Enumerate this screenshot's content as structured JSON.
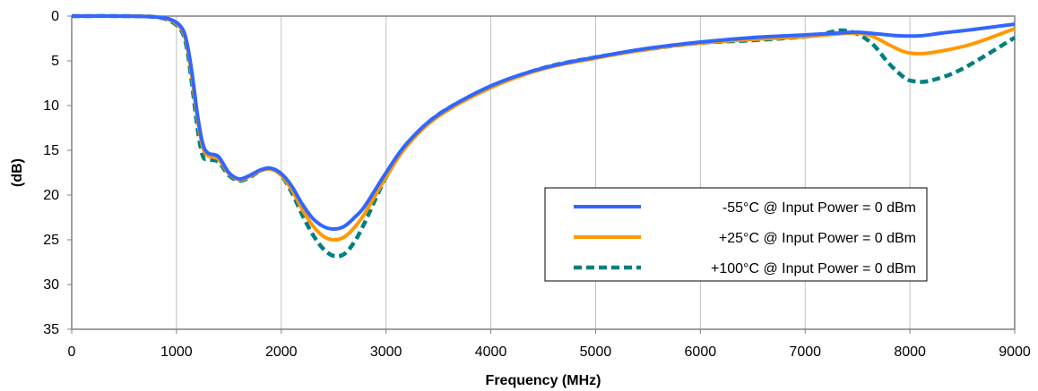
{
  "chart_data": {
    "type": "line",
    "title": "",
    "xlabel": "Frequency (MHz)",
    "ylabel": "(dB)",
    "xlim": [
      0,
      9000
    ],
    "ylim": [
      35,
      0
    ],
    "y_inverted": true,
    "x_ticks": [
      0,
      1000,
      2000,
      3000,
      4000,
      5000,
      6000,
      7000,
      8000,
      9000
    ],
    "y_ticks": [
      0,
      5,
      10,
      15,
      20,
      25,
      30,
      35
    ],
    "grid": "vertical",
    "legend_position": "bottom-right",
    "series": [
      {
        "name": "-55°C @  Input Power = 0 dBm",
        "color": "#3366ff",
        "style": "solid",
        "x": [
          0,
          500,
          800,
          950,
          1050,
          1100,
          1150,
          1200,
          1250,
          1300,
          1400,
          1500,
          1600,
          1700,
          1800,
          1900,
          2000,
          2100,
          2200,
          2300,
          2400,
          2500,
          2600,
          2700,
          2800,
          3000,
          3200,
          3500,
          4000,
          4500,
          5000,
          5500,
          6000,
          6500,
          7000,
          7300,
          7500,
          7700,
          7900,
          8100,
          8300,
          8600,
          9000
        ],
        "y": [
          0,
          0,
          0.1,
          0.4,
          1.3,
          3.0,
          6.5,
          11.0,
          14.2,
          15.3,
          15.7,
          17.5,
          18.2,
          17.8,
          17.2,
          17.0,
          17.6,
          19.0,
          21.0,
          22.6,
          23.5,
          23.8,
          23.5,
          22.5,
          21.2,
          17.5,
          14.2,
          11.0,
          7.8,
          5.8,
          4.6,
          3.6,
          2.9,
          2.4,
          2.1,
          1.9,
          1.8,
          2.0,
          2.2,
          2.2,
          1.9,
          1.5,
          0.9
        ]
      },
      {
        "name": "+25°C @  Input Power = 0 dBm",
        "color": "#ff9900",
        "style": "solid",
        "x": [
          0,
          500,
          800,
          950,
          1050,
          1100,
          1150,
          1200,
          1250,
          1300,
          1400,
          1500,
          1600,
          1700,
          1800,
          1900,
          2000,
          2100,
          2200,
          2300,
          2400,
          2500,
          2600,
          2700,
          2800,
          3000,
          3200,
          3500,
          4000,
          4500,
          5000,
          5500,
          6000,
          6500,
          7000,
          7300,
          7500,
          7650,
          7800,
          7950,
          8100,
          8300,
          8600,
          9000
        ],
        "y": [
          0,
          0,
          0.1,
          0.5,
          1.5,
          3.3,
          7.0,
          11.5,
          14.6,
          15.6,
          16.0,
          17.6,
          18.3,
          17.9,
          17.3,
          17.1,
          17.8,
          19.4,
          21.6,
          23.4,
          24.6,
          25.0,
          24.7,
          23.6,
          22.0,
          18.0,
          14.5,
          11.2,
          8.0,
          5.9,
          4.7,
          3.7,
          3.0,
          2.6,
          2.3,
          2.0,
          1.9,
          2.3,
          3.2,
          4.0,
          4.2,
          3.9,
          3.1,
          1.4
        ]
      },
      {
        "name": "+100°C @  Input Power = 0 dBm",
        "color": "#008080",
        "style": "dashed",
        "x": [
          0,
          500,
          800,
          950,
          1050,
          1100,
          1150,
          1200,
          1250,
          1300,
          1400,
          1500,
          1600,
          1700,
          1800,
          1900,
          2000,
          2100,
          2200,
          2300,
          2400,
          2500,
          2600,
          2700,
          2800,
          3000,
          3200,
          3500,
          4000,
          4500,
          5000,
          5500,
          6000,
          6500,
          7000,
          7200,
          7350,
          7500,
          7650,
          7800,
          7950,
          8050,
          8200,
          8500,
          9000
        ],
        "y": [
          0,
          0,
          0.1,
          0.6,
          1.7,
          3.7,
          7.8,
          12.5,
          15.6,
          16.0,
          16.3,
          17.8,
          18.4,
          18.0,
          17.3,
          17.0,
          17.8,
          19.7,
          22.2,
          24.4,
          26.0,
          26.8,
          26.6,
          25.2,
          23.0,
          18.0,
          14.4,
          11.0,
          7.9,
          5.8,
          4.6,
          3.7,
          3.0,
          2.7,
          2.3,
          1.9,
          1.6,
          2.0,
          3.2,
          5.3,
          6.9,
          7.3,
          7.2,
          5.9,
          2.4
        ]
      }
    ]
  }
}
